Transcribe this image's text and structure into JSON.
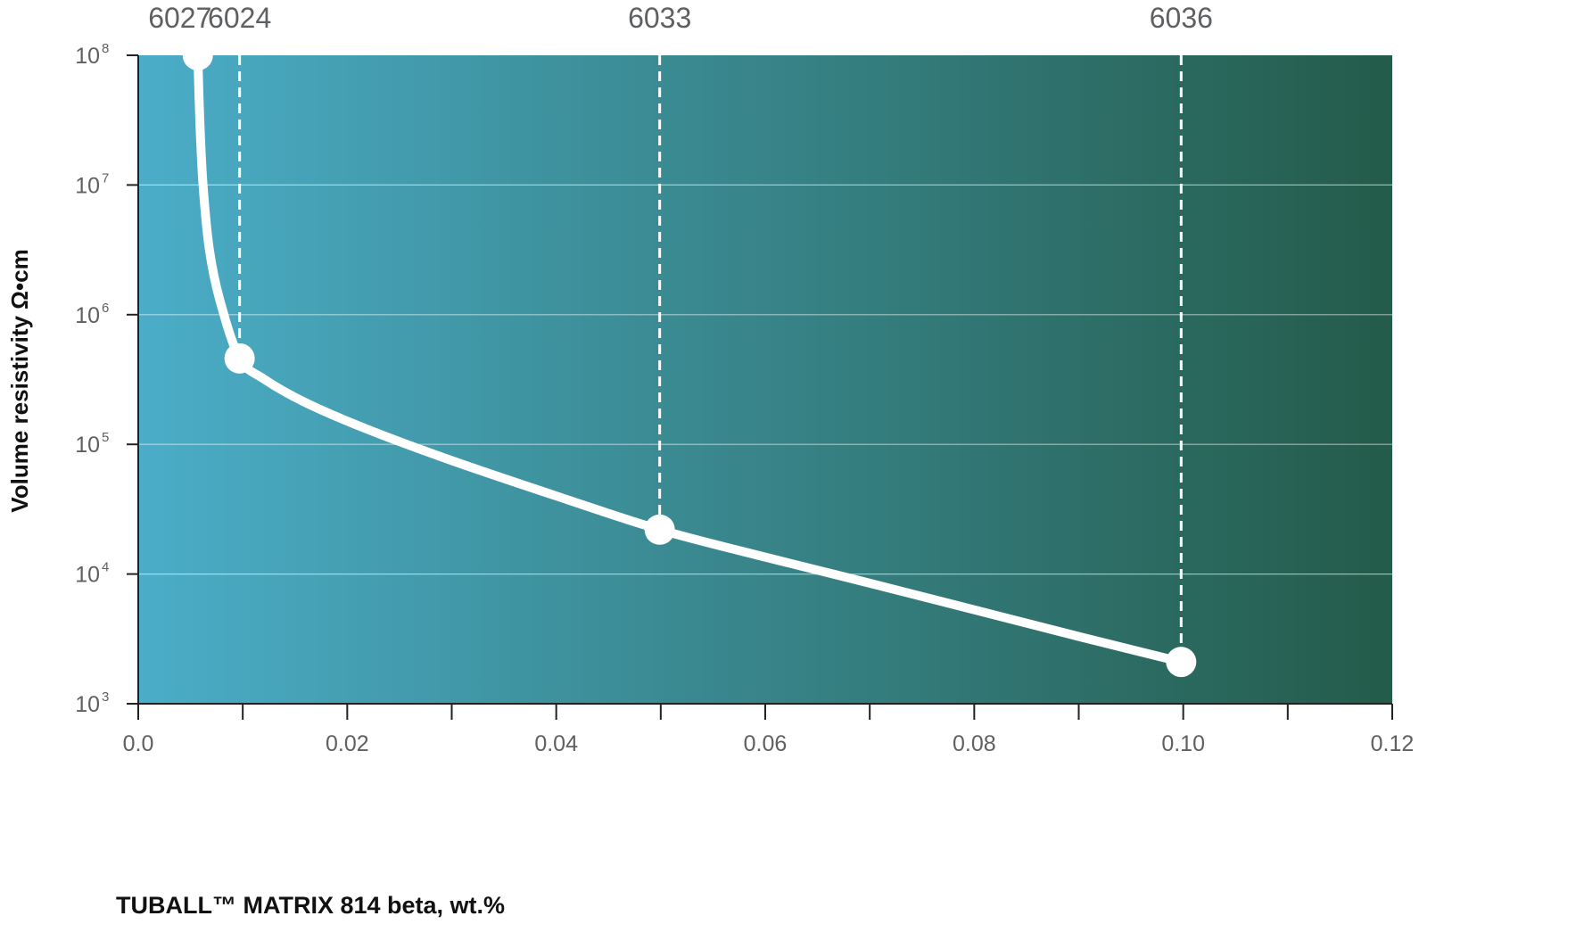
{
  "chart_data": {
    "type": "line",
    "xlabel": "TUBALL™ MATRIX 814 beta, wt.%",
    "ylabel": "Volume resistivity  Ω•cm",
    "y_scale": "log",
    "xlim": [
      0.0,
      0.12
    ],
    "ylim": [
      1000,
      100000000
    ],
    "x_ticks": [
      0.0,
      0.02,
      0.04,
      0.06,
      0.08,
      0.1,
      0.12
    ],
    "x_tick_labels": [
      "0.0",
      "0.02",
      "0.04",
      "0.06",
      "0.08",
      "0.10",
      "0.12"
    ],
    "y_ticks": [
      {
        "value": 1000,
        "base": "10",
        "exp": "3"
      },
      {
        "value": 10000,
        "base": "10",
        "exp": "4"
      },
      {
        "value": 100000,
        "base": "10",
        "exp": "5"
      },
      {
        "value": 1000000,
        "base": "10",
        "exp": "6"
      },
      {
        "value": 10000000,
        "base": "10",
        "exp": "7"
      },
      {
        "value": 100000000,
        "base": "10",
        "exp": "8"
      }
    ],
    "grid": "horizontal",
    "background": {
      "gradient_start": "#4badc8",
      "gradient_end": "#245b4a"
    },
    "line_color": "#ffffff",
    "label_color": "#5f6062",
    "points": [
      {
        "label": "6027",
        "x": 0.0057,
        "y": 100000000
      },
      {
        "label": "6024",
        "x": 0.0097,
        "y": 460000
      },
      {
        "label": "6033",
        "x": 0.0499,
        "y": 22000
      },
      {
        "label": "6036",
        "x": 0.0998,
        "y": 2100
      }
    ],
    "curve": {
      "x": [
        0.0057,
        0.0059,
        0.0062,
        0.0068,
        0.0078,
        0.0097,
        0.012,
        0.016,
        0.022,
        0.03,
        0.04,
        0.0499,
        0.06,
        0.07,
        0.08,
        0.09,
        0.0998
      ],
      "y": [
        100000000,
        30000000,
        10000000,
        3200000,
        1300000,
        460000,
        320000,
        210000,
        130000,
        75000,
        40000,
        22000,
        13500,
        8500,
        5300,
        3300,
        2100
      ]
    }
  }
}
